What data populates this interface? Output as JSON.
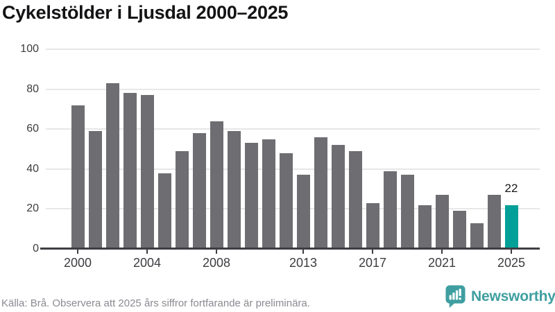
{
  "title": "Cykelstölder i Ljusdal 2000–2025",
  "footer": {
    "source": "Källa: Brå. Observera att 2025 års siffror fortfarande är preliminära.",
    "brand": "Newsworthy",
    "brand_icon": "bar-chart-speech-bubble-icon"
  },
  "colors": {
    "bar": "#6d6d72",
    "highlight": "#00a099",
    "grid": "#e7e7e8",
    "axis": "#3d3d42",
    "axis_label": "#3c3c41",
    "value_label": "#17171a",
    "title_text": "#141416",
    "source_text": "#8a8a91",
    "brand": "#3f9ea0",
    "background": "#ffffff"
  },
  "chart_data": {
    "type": "bar",
    "title": "Cykelstölder i Ljusdal 2000–2025",
    "xlabel": "",
    "ylabel": "",
    "categories": [
      2000,
      2001,
      2002,
      2003,
      2004,
      2005,
      2006,
      2007,
      2008,
      2009,
      2010,
      2011,
      2012,
      2013,
      2014,
      2015,
      2016,
      2017,
      2018,
      2019,
      2020,
      2021,
      2022,
      2023,
      2024,
      2025
    ],
    "values": [
      72,
      59,
      83,
      78,
      77,
      38,
      49,
      58,
      64,
      59,
      53,
      55,
      48,
      37,
      56,
      52,
      49,
      23,
      39,
      37,
      22,
      27,
      19,
      13,
      27,
      22
    ],
    "ylim": [
      0,
      100
    ],
    "y_ticks": [
      0,
      20,
      40,
      60,
      80,
      100
    ],
    "x_tick_years": [
      2000,
      2004,
      2008,
      2013,
      2017,
      2021,
      2025
    ],
    "grid": "horizontal",
    "legend": "none",
    "highlight_category": 2025,
    "highlight_value_label": "22"
  }
}
